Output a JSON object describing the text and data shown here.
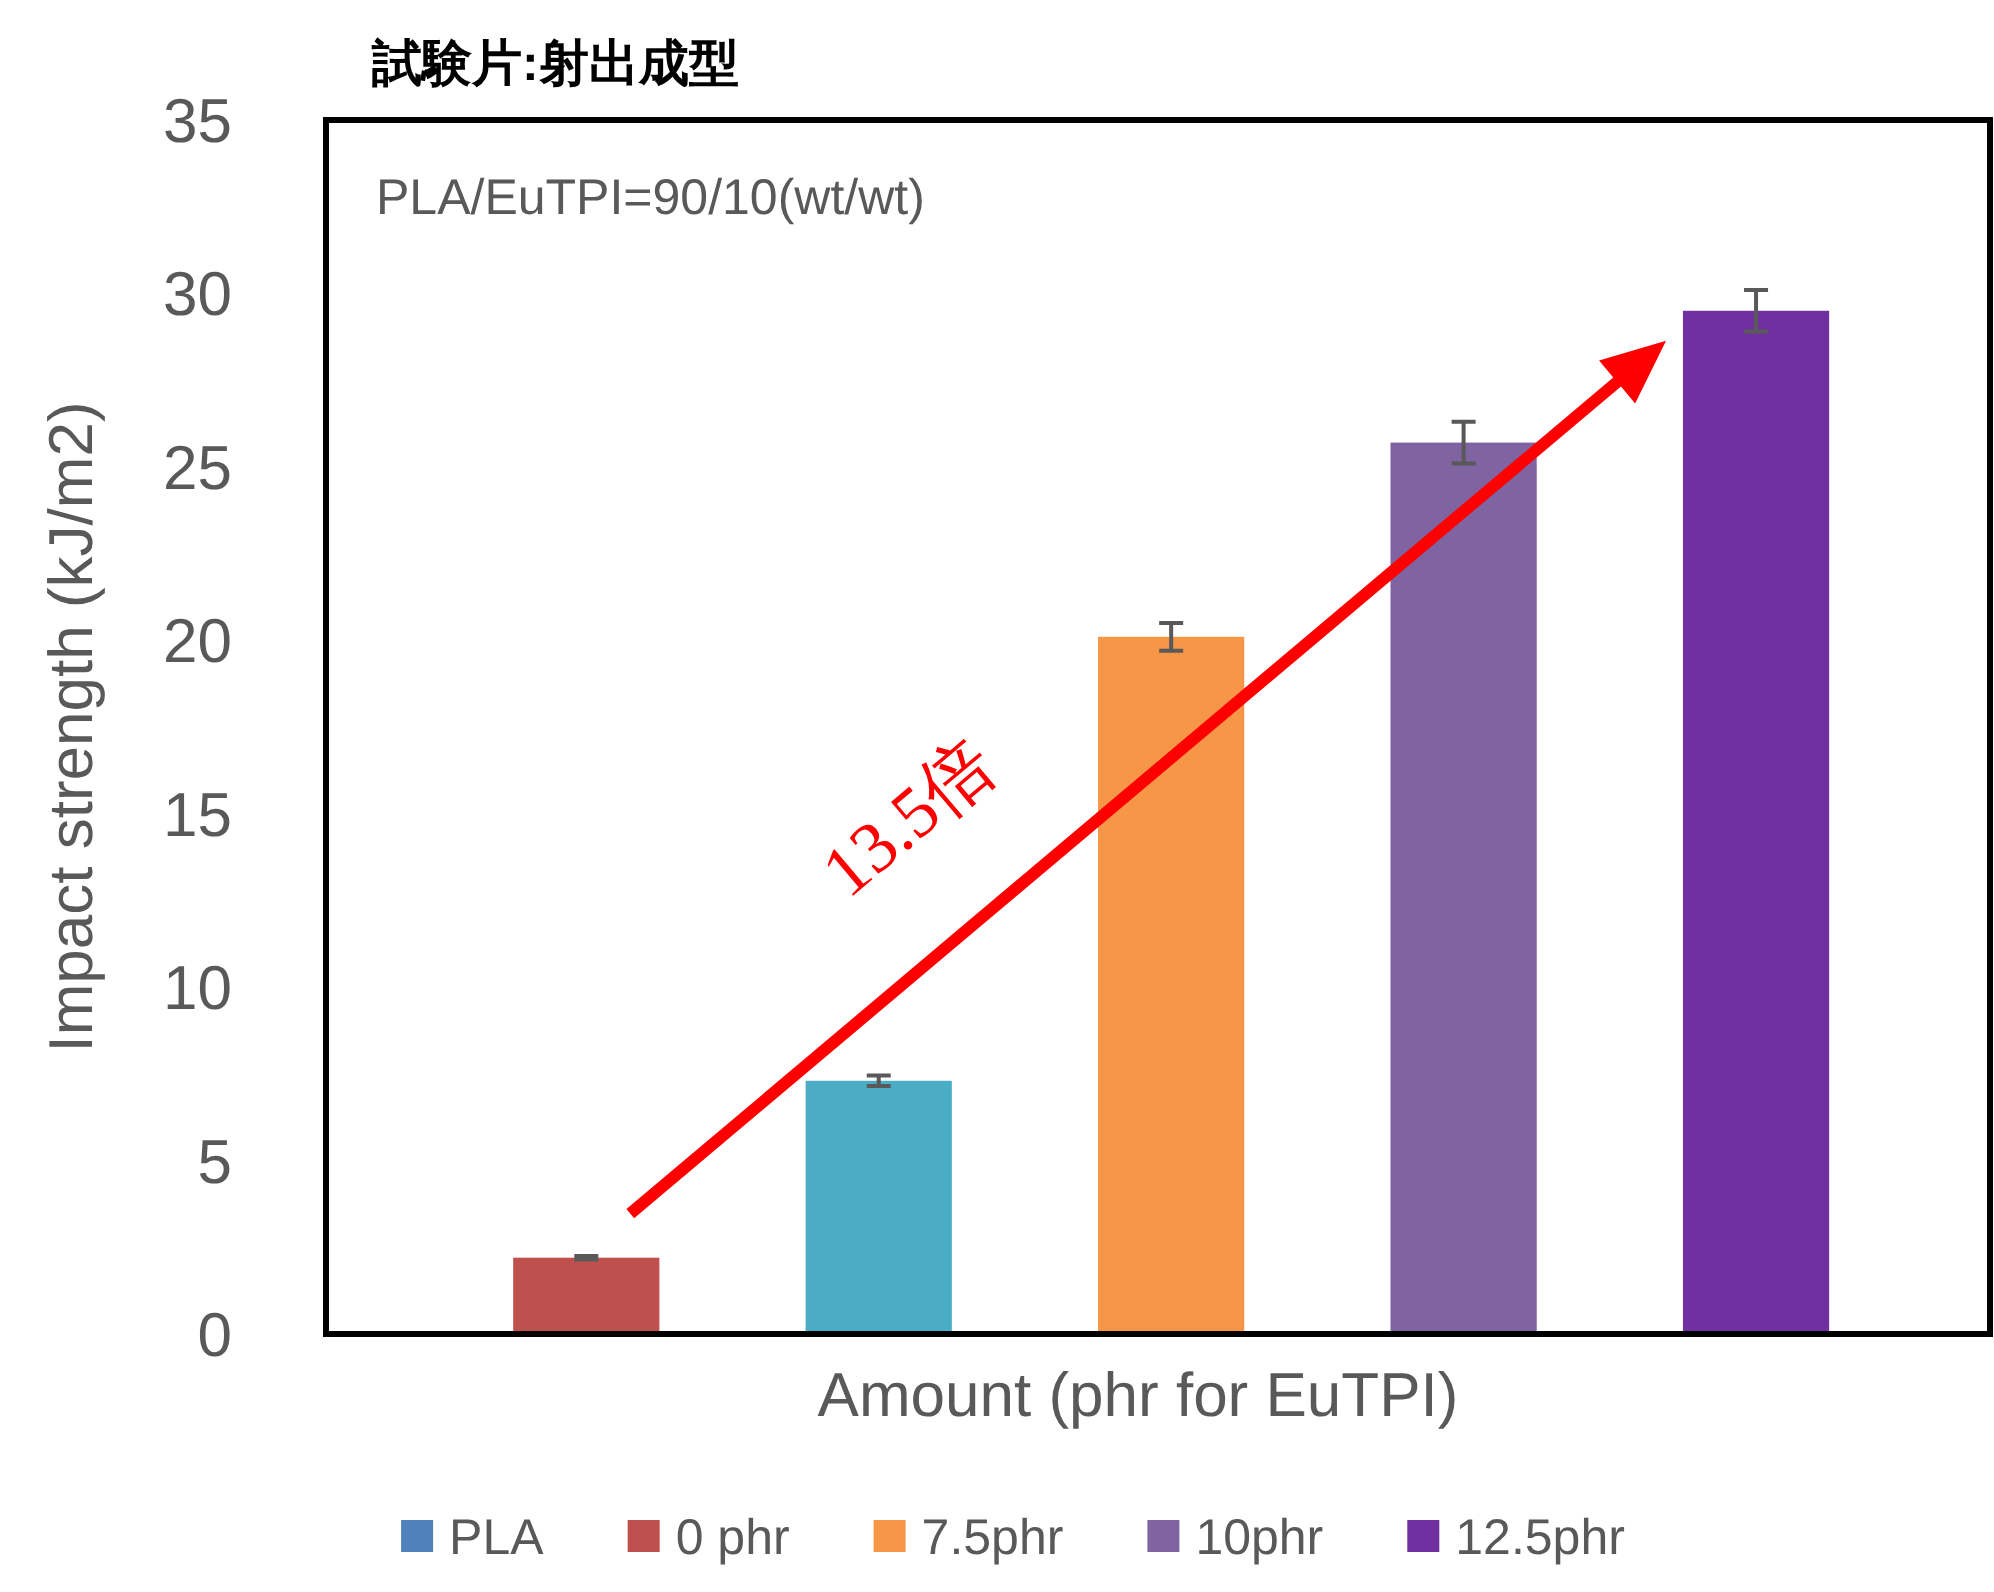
{
  "chart_data": {
    "type": "bar",
    "title": "試験片:射出成型",
    "xlabel": "Amount (phr for EuTPI)",
    "ylabel": "Impact strength (kJ/m2)",
    "annotations": [
      "PLA/EuTPI=90/10(wt/wt)",
      "13.5倍"
    ],
    "categories": [
      null,
      null,
      null,
      null,
      null
    ],
    "series": [
      {
        "name": "PLA",
        "color": "#4f81bd",
        "values": [
          null,
          null,
          null,
          null,
          null
        ]
      },
      {
        "name": "0 phr",
        "color": "#c0504d",
        "values": [
          2.2,
          null,
          null,
          null,
          null
        ],
        "errors": [
          0.05,
          null,
          null,
          null,
          null
        ]
      },
      {
        "color": "#4bacc6",
        "values": [
          null,
          7.3,
          null,
          null,
          null
        ],
        "errors": [
          null,
          0.15,
          null,
          null,
          null
        ]
      },
      {
        "name": "7.5phr",
        "color": "#f79646",
        "values": [
          null,
          null,
          20.1,
          null,
          null
        ],
        "errors": [
          null,
          null,
          0.4,
          null,
          null
        ]
      },
      {
        "name": "10phr",
        "color": "#8064a2",
        "values": [
          null,
          null,
          null,
          25.7,
          null
        ],
        "errors": [
          null,
          null,
          null,
          0.6,
          null
        ]
      },
      {
        "name": "12.5phr",
        "color": "#7030a0",
        "values": [
          null,
          null,
          null,
          null,
          29.5
        ],
        "errors": [
          null,
          null,
          null,
          null,
          0.6
        ]
      }
    ],
    "ylim": [
      0,
      35
    ],
    "yticks": [
      0,
      5,
      10,
      15,
      20,
      25,
      30,
      35
    ],
    "grid": false,
    "legend": "bottom"
  }
}
